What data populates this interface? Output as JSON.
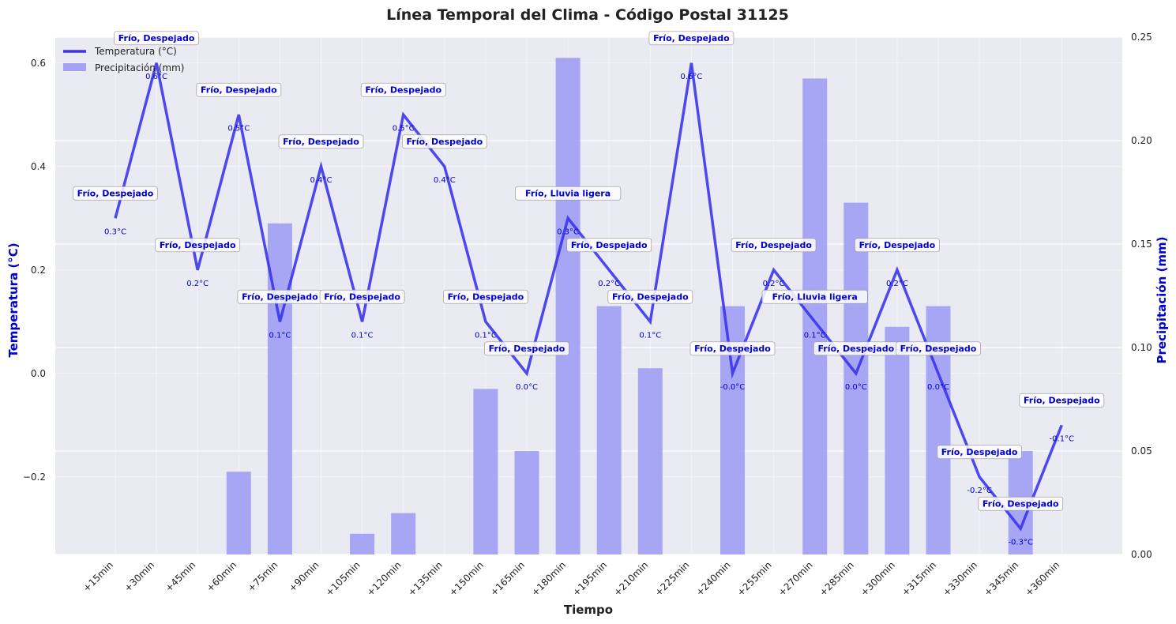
{
  "colors": {
    "temperature": "#3b35ee",
    "precipitation": "#a3a2f4",
    "label": "#0000cc",
    "plot_bg": "#eaeaf2",
    "grid": "#ffffff"
  },
  "chart_data": {
    "type": "bar+line",
    "title": "Línea Temporal del Clima - Código Postal 31125",
    "xlabel": "Tiempo",
    "ylabel_left": "Temperatura (°C)",
    "ylabel_right": "Precipitación (mm)",
    "ylim_left": [
      -0.35,
      0.65
    ],
    "ylim_right": [
      0.0,
      0.25
    ],
    "yticks_left": [
      -0.2,
      0.0,
      0.2,
      0.4,
      0.6
    ],
    "yticks_left_labels": [
      "−0.2",
      "0.0",
      "0.2",
      "0.4",
      "0.6"
    ],
    "yticks_right": [
      0.0,
      0.05,
      0.1,
      0.15,
      0.2,
      0.25
    ],
    "yticks_right_labels": [
      "0.00",
      "0.05",
      "0.10",
      "0.15",
      "0.20",
      "0.25"
    ],
    "categories": [
      "+15min",
      "+30min",
      "+45min",
      "+60min",
      "+75min",
      "+90min",
      "+105min",
      "+120min",
      "+135min",
      "+150min",
      "+165min",
      "+180min",
      "+195min",
      "+210min",
      "+225min",
      "+240min",
      "+255min",
      "+270min",
      "+285min",
      "+300min",
      "+315min",
      "+330min",
      "+345min",
      "+360min"
    ],
    "series": [
      {
        "name": "Temperatura (°C)",
        "type": "line",
        "axis": "left",
        "values": [
          0.3,
          0.6,
          0.2,
          0.5,
          0.1,
          0.4,
          0.1,
          0.5,
          0.4,
          0.1,
          0.0,
          0.3,
          0.2,
          0.1,
          0.6,
          0.0,
          0.2,
          0.1,
          0.0,
          0.2,
          0.0,
          -0.2,
          -0.3,
          -0.1
        ],
        "labels": [
          "0.3°C",
          "0.6°C",
          "0.2°C",
          "0.5°C",
          "0.1°C",
          "0.4°C",
          "0.1°C",
          "0.5°C",
          "0.4°C",
          "0.1°C",
          "0.0°C",
          "0.3°C",
          "0.2°C",
          "0.1°C",
          "0.6°C",
          "-0.0°C",
          "0.2°C",
          "0.1°C",
          "0.0°C",
          "0.2°C",
          "0.0°C",
          "-0.2°C",
          "-0.3°C",
          "-0.1°C"
        ]
      },
      {
        "name": "Precipitación (mm)",
        "type": "bar",
        "axis": "right",
        "values": [
          0.0,
          0.0,
          0.0,
          0.04,
          0.16,
          0.0,
          0.01,
          0.02,
          0.0,
          0.08,
          0.05,
          0.24,
          0.12,
          0.09,
          0.0,
          0.12,
          0.0,
          0.23,
          0.17,
          0.11,
          0.12,
          0.0,
          0.05,
          0.0
        ]
      }
    ],
    "conditions": [
      "Frío, Despejado",
      "Frío, Despejado",
      "Frío, Despejado",
      "Frío, Despejado",
      "Frío, Despejado",
      "Frío, Despejado",
      "Frío, Despejado",
      "Frío, Despejado",
      "Frío, Despejado",
      "Frío, Despejado",
      "Frío, Despejado",
      "Frío, Lluvia ligera",
      "Frío, Despejado",
      "Frío, Despejado",
      "Frío, Despejado",
      "Frío, Despejado",
      "Frío, Despejado",
      "Frío, Lluvia ligera",
      "Frío, Despejado",
      "Frío, Despejado",
      "Frío, Despejado",
      "Frío, Despejado",
      "Frío, Despejado",
      "Frío, Despejado"
    ],
    "legend": [
      "Temperatura (°C)",
      "Precipitación (mm)"
    ],
    "legend_position": "top-left",
    "grid": true
  }
}
